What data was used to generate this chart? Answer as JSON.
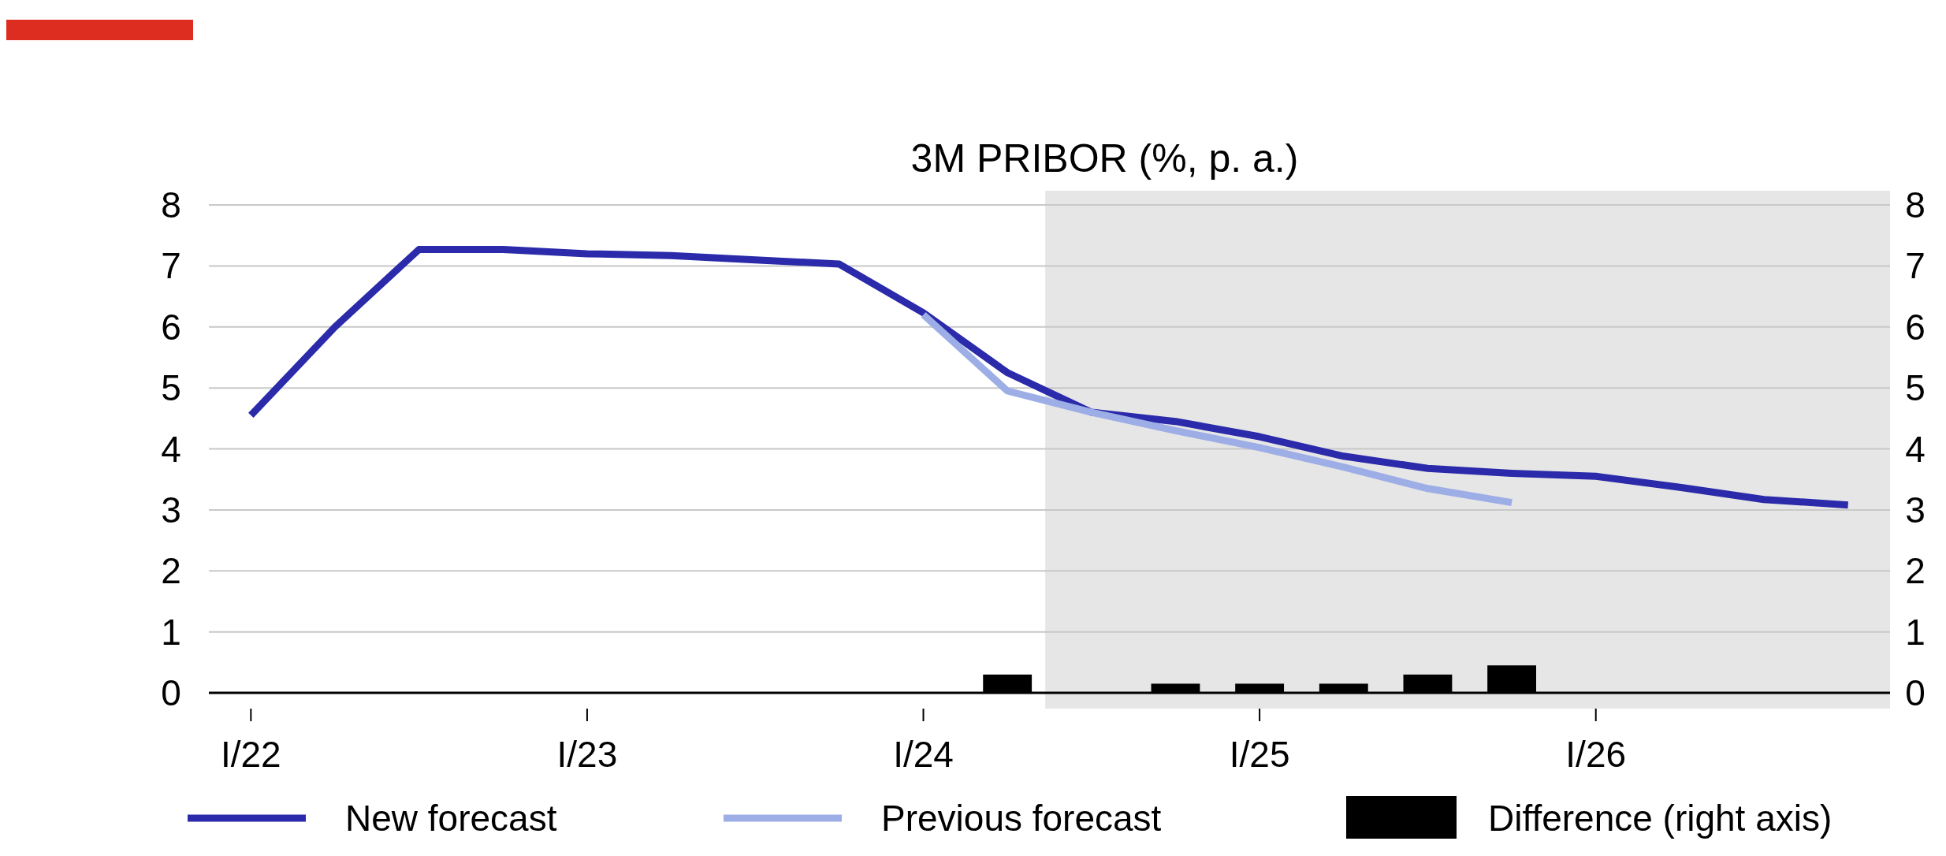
{
  "chart_data": {
    "type": "line",
    "title": "3M PRIBOR (%, p. a.)",
    "categories": [
      "I/22",
      null,
      null,
      null,
      "I/23",
      null,
      null,
      null,
      "I/24",
      null,
      null,
      null,
      "I/25",
      null,
      null,
      null,
      "I/26",
      null,
      null,
      null
    ],
    "series": [
      {
        "name": "New forecast",
        "color": "#2a2aaa",
        "values": [
          4.55,
          6.0,
          7.27,
          7.27,
          7.2,
          7.17,
          7.1,
          7.03,
          6.23,
          5.25,
          4.6,
          4.45,
          4.2,
          3.88,
          3.68,
          3.6,
          3.55,
          3.37,
          3.17,
          3.08
        ]
      },
      {
        "name": "Previous forecast",
        "color": "#9daee6",
        "values": [
          null,
          null,
          null,
          null,
          null,
          null,
          null,
          null,
          6.2,
          4.95,
          4.6,
          4.3,
          4.02,
          3.7,
          3.35,
          3.12,
          null,
          null,
          null,
          null
        ]
      },
      {
        "name": "Difference (right axis)",
        "type": "bar",
        "axis": "y2",
        "color": "#000000",
        "values": [
          null,
          null,
          null,
          null,
          null,
          null,
          null,
          null,
          null,
          0.3,
          null,
          0.15,
          0.15,
          0.15,
          0.3,
          0.45,
          null,
          null,
          null,
          null
        ]
      }
    ],
    "ylim": [
      0,
      8
    ],
    "yticks": [
      0,
      1,
      2,
      3,
      4,
      5,
      6,
      7,
      8
    ],
    "y2lim": [
      0,
      8
    ],
    "y2ticks": [
      0,
      1,
      2,
      3,
      4,
      5,
      6,
      7,
      8
    ],
    "grid": "y",
    "legend": "bottom",
    "line_style": "solid",
    "marker": "none"
  }
}
